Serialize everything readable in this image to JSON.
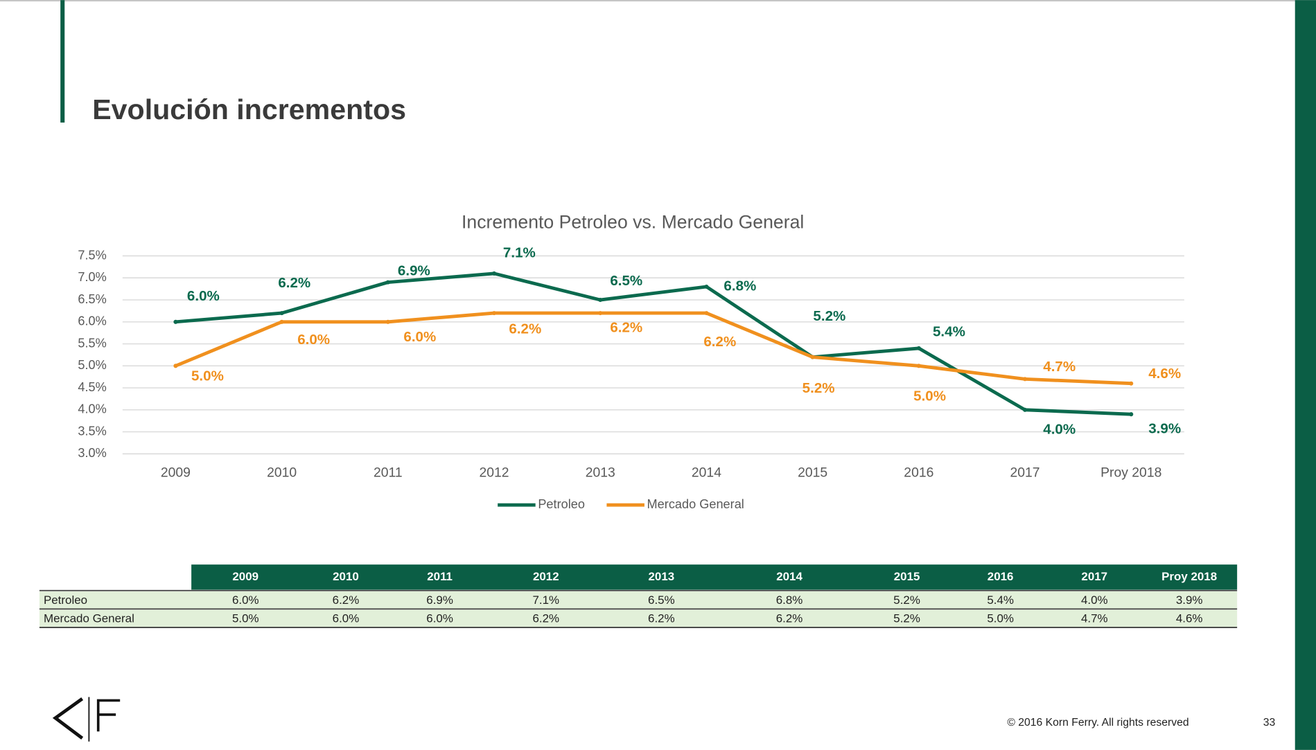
{
  "slide_title": "Evolución incrementos",
  "chart_data": {
    "type": "line",
    "title": "Incremento Petroleo vs. Mercado General",
    "categories": [
      "2009",
      "2010",
      "2011",
      "2012",
      "2013",
      "2014",
      "2015",
      "2016",
      "2017",
      "Proy 2018"
    ],
    "series": [
      {
        "name": "Petroleo",
        "color": "#0b6a4e",
        "values": [
          6.0,
          6.2,
          6.9,
          7.1,
          6.5,
          6.8,
          5.2,
          5.4,
          4.0,
          3.9
        ],
        "value_labels": [
          "6.0%",
          "6.2%",
          "6.9%",
          "7.1%",
          "6.5%",
          "6.8%",
          "5.2%",
          "5.4%",
          "4.0%",
          "3.9%"
        ]
      },
      {
        "name": "Mercado General",
        "color": "#f0901e",
        "values": [
          5.0,
          6.0,
          6.0,
          6.2,
          6.2,
          6.2,
          5.2,
          5.0,
          4.7,
          4.6
        ],
        "value_labels": [
          "5.0%",
          "6.0%",
          "6.0%",
          "6.2%",
          "6.2%",
          "6.2%",
          "5.2%",
          "5.0%",
          "4.7%",
          "4.6%"
        ]
      }
    ],
    "ylim": [
      3.0,
      7.5
    ],
    "yticks": [
      {
        "value": 3.0,
        "label": "3.0%"
      },
      {
        "value": 3.5,
        "label": "3.5%"
      },
      {
        "value": 4.0,
        "label": "4.0%"
      },
      {
        "value": 4.5,
        "label": "4.5%"
      },
      {
        "value": 5.0,
        "label": "5.0%"
      },
      {
        "value": 5.5,
        "label": "5.5%"
      },
      {
        "value": 6.0,
        "label": "6.0%"
      },
      {
        "value": 6.5,
        "label": "6.5%"
      },
      {
        "value": 7.0,
        "label": "7.0%"
      },
      {
        "value": 7.5,
        "label": "7.5%"
      }
    ],
    "grid": true,
    "legend": "bottom"
  },
  "table": {
    "header": [
      "2009",
      "2010",
      "2011",
      "2012",
      "2013",
      "2014",
      "2015",
      "2016",
      "2017",
      "Proy 2018"
    ],
    "rows": [
      [
        "Petroleo",
        "6.0%",
        "6.2%",
        "6.9%",
        "7.1%",
        "6.5%",
        "6.8%",
        "5.2%",
        "5.4%",
        "4.0%",
        "3.9%"
      ],
      [
        "Mercado General",
        "5.0%",
        "6.0%",
        "6.0%",
        "6.2%",
        "6.2%",
        "6.2%",
        "5.2%",
        "5.0%",
        "4.7%",
        "4.6%"
      ]
    ]
  },
  "footer": {
    "copyright": "© 2016 Korn Ferry. All rights reserved",
    "page_number": "33"
  }
}
